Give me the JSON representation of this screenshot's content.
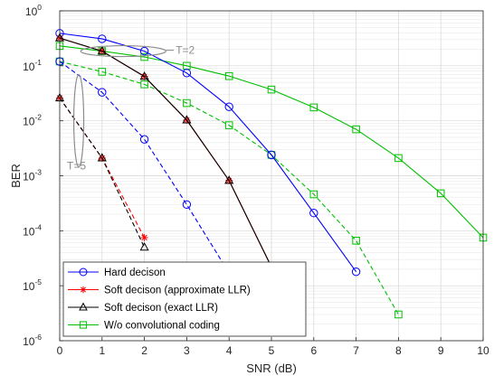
{
  "chart_data": {
    "type": "line",
    "title": "",
    "xlabel": "SNR (dB)",
    "ylabel": "BER",
    "x_scale": "linear",
    "y_scale": "log",
    "xlim": [
      0,
      10
    ],
    "ylim": [
      1e-06,
      1
    ],
    "x_ticks": [
      "0",
      "1",
      "2",
      "3",
      "4",
      "5",
      "6",
      "7",
      "8",
      "9",
      "10"
    ],
    "y_ticks": [
      {
        "base": "10",
        "exp": "0"
      },
      {
        "base": "10",
        "exp": "-1"
      },
      {
        "base": "10",
        "exp": "-2"
      },
      {
        "base": "10",
        "exp": "-3"
      },
      {
        "base": "10",
        "exp": "-4"
      },
      {
        "base": "10",
        "exp": "-5"
      },
      {
        "base": "10",
        "exp": "-6"
      }
    ],
    "grid": true,
    "minor_grid": true,
    "legend_position": "bottom-left",
    "series": [
      {
        "name": "Hard decison",
        "color": "#0000ff",
        "marker": "circle",
        "dash": "solid",
        "group": "T=2",
        "x": [
          0,
          1,
          2,
          3,
          4,
          5,
          6,
          7
        ],
        "y": [
          0.39,
          0.31,
          0.185,
          0.074,
          0.018,
          0.0024,
          0.00021,
          1.8e-05
        ]
      },
      {
        "name": "Hard decison",
        "color": "#0000ff",
        "marker": "circle",
        "dash": "dashed",
        "group": "T=5",
        "x": [
          0,
          1,
          2,
          3,
          4
        ],
        "y": [
          0.12,
          0.033,
          0.0046,
          0.0003,
          1.7e-05
        ]
      },
      {
        "name": "Soft decison (approximate LLR)",
        "color": "#ff0000",
        "marker": "star",
        "dash": "solid",
        "group": "T=2",
        "x": [
          0,
          1,
          2,
          3,
          4,
          5
        ],
        "y": [
          0.32,
          0.185,
          0.064,
          0.0103,
          0.00082,
          2.2e-05
        ]
      },
      {
        "name": "Soft decison (approximate LLR)",
        "color": "#ff0000",
        "marker": "star",
        "dash": "dashed",
        "group": "T=5",
        "x": [
          0,
          1,
          2
        ],
        "y": [
          0.026,
          0.0021,
          7.5e-05
        ]
      },
      {
        "name": "Soft decison (exact LLR)",
        "color": "#000000",
        "marker": "triangle",
        "dash": "solid",
        "group": "T=2",
        "x": [
          0,
          1,
          2,
          3,
          4,
          5
        ],
        "y": [
          0.32,
          0.185,
          0.064,
          0.0103,
          0.00082,
          2.2e-05
        ]
      },
      {
        "name": "Soft decison (exact LLR)",
        "color": "#000000",
        "marker": "triangle",
        "dash": "dashed",
        "group": "T=5",
        "x": [
          0,
          1,
          2
        ],
        "y": [
          0.026,
          0.0021,
          5e-05
        ]
      },
      {
        "name": "W/o convolutional coding",
        "color": "#00c000",
        "marker": "square",
        "dash": "solid",
        "group": "T=2",
        "x": [
          0,
          1,
          2,
          3,
          4,
          5,
          6,
          7,
          8,
          9,
          10
        ],
        "y": [
          0.23,
          0.185,
          0.145,
          0.1,
          0.065,
          0.037,
          0.0175,
          0.007,
          0.0021,
          0.00048,
          7.5e-05
        ]
      },
      {
        "name": "W/o convolutional coding",
        "color": "#00c000",
        "marker": "square",
        "dash": "dashed",
        "group": "T=5",
        "x": [
          0,
          1,
          2,
          3,
          4,
          5,
          6,
          7,
          8
        ],
        "y": [
          0.12,
          0.078,
          0.046,
          0.021,
          0.0083,
          0.0024,
          0.00046,
          6.6e-05,
          3e-06
        ]
      }
    ],
    "legend": [
      {
        "label": "Hard decison",
        "color": "#0000ff",
        "marker": "circle"
      },
      {
        "label": "Soft decison (approximate LLR)",
        "color": "#ff0000",
        "marker": "star"
      },
      {
        "label": "Soft decison (exact LLR)",
        "color": "#000000",
        "marker": "triangle"
      },
      {
        "label": "W/o convolutional coding",
        "color": "#00c000",
        "marker": "square"
      }
    ],
    "annotations": [
      {
        "text": "T=2",
        "target": {
          "x": 1.5,
          "y": 0.185
        }
      },
      {
        "text": "T=5",
        "target": {
          "x": 0.5,
          "y": 0.0018
        }
      }
    ]
  }
}
